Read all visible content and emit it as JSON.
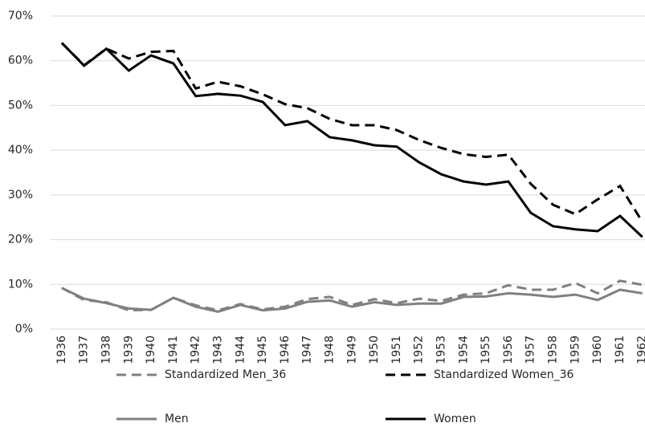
{
  "chart_data": {
    "type": "line",
    "categories": [
      "1936",
      "1937",
      "1938",
      "1939",
      "1940",
      "1941",
      "1942",
      "1943",
      "1944",
      "1945",
      "1946",
      "1947",
      "1948",
      "1949",
      "1950",
      "1951",
      "1952",
      "1953",
      "1954",
      "1955",
      "1956",
      "1957",
      "1958",
      "1959",
      "1960",
      "1961",
      "1962"
    ],
    "series": [
      {
        "name": "Standardized Men_36",
        "color": "#808080",
        "dashed": true,
        "values": [
          9.2,
          6.5,
          6,
          4.2,
          4.3,
          7,
          5.3,
          4.2,
          5.6,
          4.4,
          5,
          6.7,
          7.2,
          5.4,
          6.7,
          5.8,
          6.8,
          6.3,
          7.7,
          8,
          9.8,
          8.8,
          8.8,
          10.3,
          8,
          10.8,
          9.9
        ]
      },
      {
        "name": "Standardized Women_36",
        "color": "#000000",
        "dashed": true,
        "values": [
          64,
          59,
          62.7,
          60.5,
          62,
          62.2,
          53.8,
          55.3,
          54.3,
          52.5,
          50.3,
          49.4,
          47,
          45.6,
          45.6,
          44.5,
          42.3,
          40.5,
          39.1,
          38.5,
          39,
          32.5,
          27.8,
          25.7,
          29,
          32,
          24
        ]
      },
      {
        "name": "Men",
        "color": "#808080",
        "dashed": false,
        "values": [
          9.2,
          6.8,
          5.8,
          4.6,
          4.3,
          7,
          5,
          3.9,
          5.4,
          4.2,
          4.6,
          6.1,
          6.4,
          5,
          6,
          5.4,
          5.7,
          5.7,
          7.2,
          7.3,
          8,
          7.7,
          7.2,
          7.7,
          6.5,
          8.8,
          8
        ]
      },
      {
        "name": "Women",
        "color": "#000000",
        "dashed": false,
        "values": [
          64,
          58.9,
          62.7,
          57.8,
          61.2,
          59.4,
          52.1,
          52.6,
          52.2,
          50.8,
          45.6,
          46.5,
          42.9,
          42.2,
          41.1,
          40.8,
          37.3,
          34.6,
          33,
          32.3,
          33,
          26,
          23,
          22.3,
          21.9,
          25.3,
          20.6
        ]
      }
    ],
    "ylim": [
      0,
      70
    ],
    "yticks": [
      {
        "value": 0,
        "label": "0%"
      },
      {
        "value": 10,
        "label": "10%"
      },
      {
        "value": 20,
        "label": "20%"
      },
      {
        "value": 30,
        "label": "30%"
      },
      {
        "value": 40,
        "label": "40%"
      },
      {
        "value": 50,
        "label": "50%"
      },
      {
        "value": 60,
        "label": "60%"
      },
      {
        "value": 70,
        "label": "70%"
      }
    ],
    "grid": true
  }
}
